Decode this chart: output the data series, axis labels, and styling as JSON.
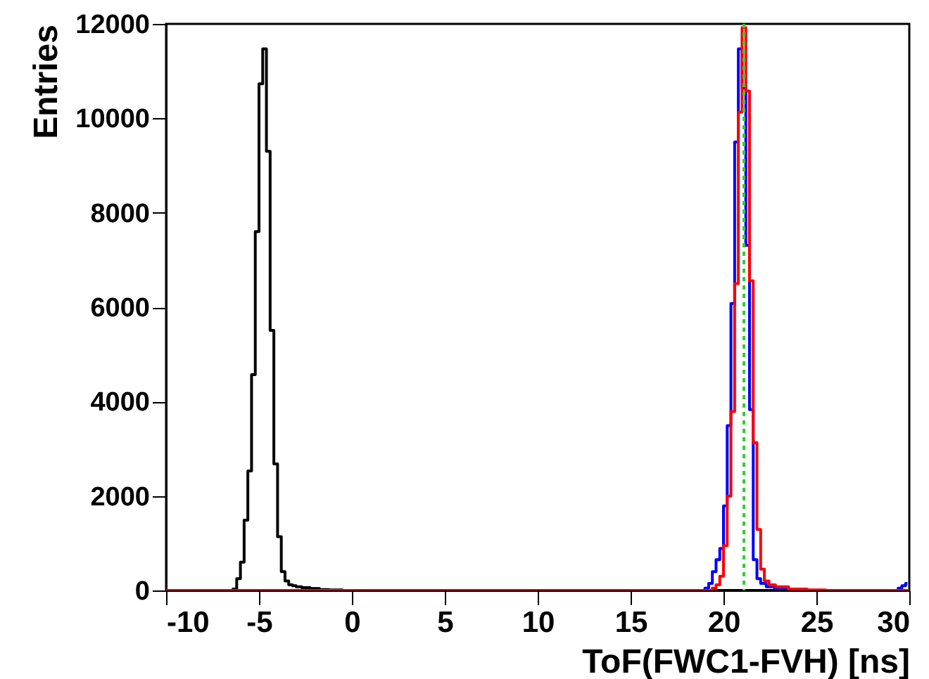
{
  "chart_data": {
    "type": "step",
    "xlabel": "ToF(FWC1-FVH) [ns]",
    "ylabel": "Entries",
    "xlim": [
      -10,
      30
    ],
    "xticks": [
      -10,
      -5,
      0,
      5,
      10,
      15,
      20,
      25,
      30
    ],
    "ylim": [
      0,
      12000
    ],
    "yticks": [
      0,
      2000,
      4000,
      6000,
      8000,
      10000,
      12000
    ],
    "grid": false,
    "marker": "none",
    "line_style": "solid",
    "series": [
      {
        "color": "#000000",
        "x": [
          -10,
          -6.5,
          -6.3,
          -6.1,
          -5.9,
          -5.7,
          -5.5,
          -5.3,
          -5.1,
          -4.9,
          -4.7,
          -4.5,
          -4.3,
          -4.1,
          -3.9,
          -3.7,
          -3.5,
          -3.3,
          -3.1,
          -2.9,
          -2.5,
          -2.0,
          -1.5,
          -1.0,
          0,
          30
        ],
        "values": [
          0,
          0,
          30,
          250,
          600,
          1490,
          2530,
          4570,
          7600,
          10730,
          11470,
          9300,
          5510,
          2680,
          1140,
          400,
          200,
          120,
          100,
          80,
          60,
          40,
          20,
          10,
          0,
          0
        ]
      },
      {
        "color": "#0000ff",
        "x": [
          -10,
          18.9,
          19.1,
          19.3,
          19.5,
          19.7,
          19.9,
          20.1,
          20.3,
          20.5,
          20.7,
          20.9,
          21.1,
          21.3,
          21.5,
          21.7,
          21.9,
          22.1,
          22.5,
          23,
          24,
          25,
          29.3,
          29.5,
          29.7,
          29.9
        ],
        "values": [
          0,
          0,
          50,
          150,
          400,
          650,
          890,
          1790,
          3490,
          6080,
          9500,
          11470,
          10640,
          7310,
          3830,
          650,
          250,
          150,
          80,
          40,
          20,
          0,
          0,
          50,
          100,
          150
        ]
      },
      {
        "color": "#ff0000",
        "x": [
          -10,
          19.3,
          19.5,
          19.7,
          19.9,
          20.1,
          20.3,
          20.5,
          20.7,
          20.9,
          21.1,
          21.3,
          21.5,
          21.7,
          21.9,
          22.1,
          22.3,
          22.6,
          23,
          24,
          25,
          26,
          30
        ],
        "values": [
          0,
          0,
          50,
          120,
          300,
          950,
          2000,
          3790,
          6500,
          10130,
          11920,
          10580,
          6560,
          3130,
          1290,
          450,
          200,
          120,
          80,
          30,
          10,
          0,
          0
        ]
      }
    ],
    "ref_lines": [
      {
        "axis": "x",
        "value": 21.1,
        "color": "#33cc33",
        "line_style": "dotted"
      }
    ]
  }
}
